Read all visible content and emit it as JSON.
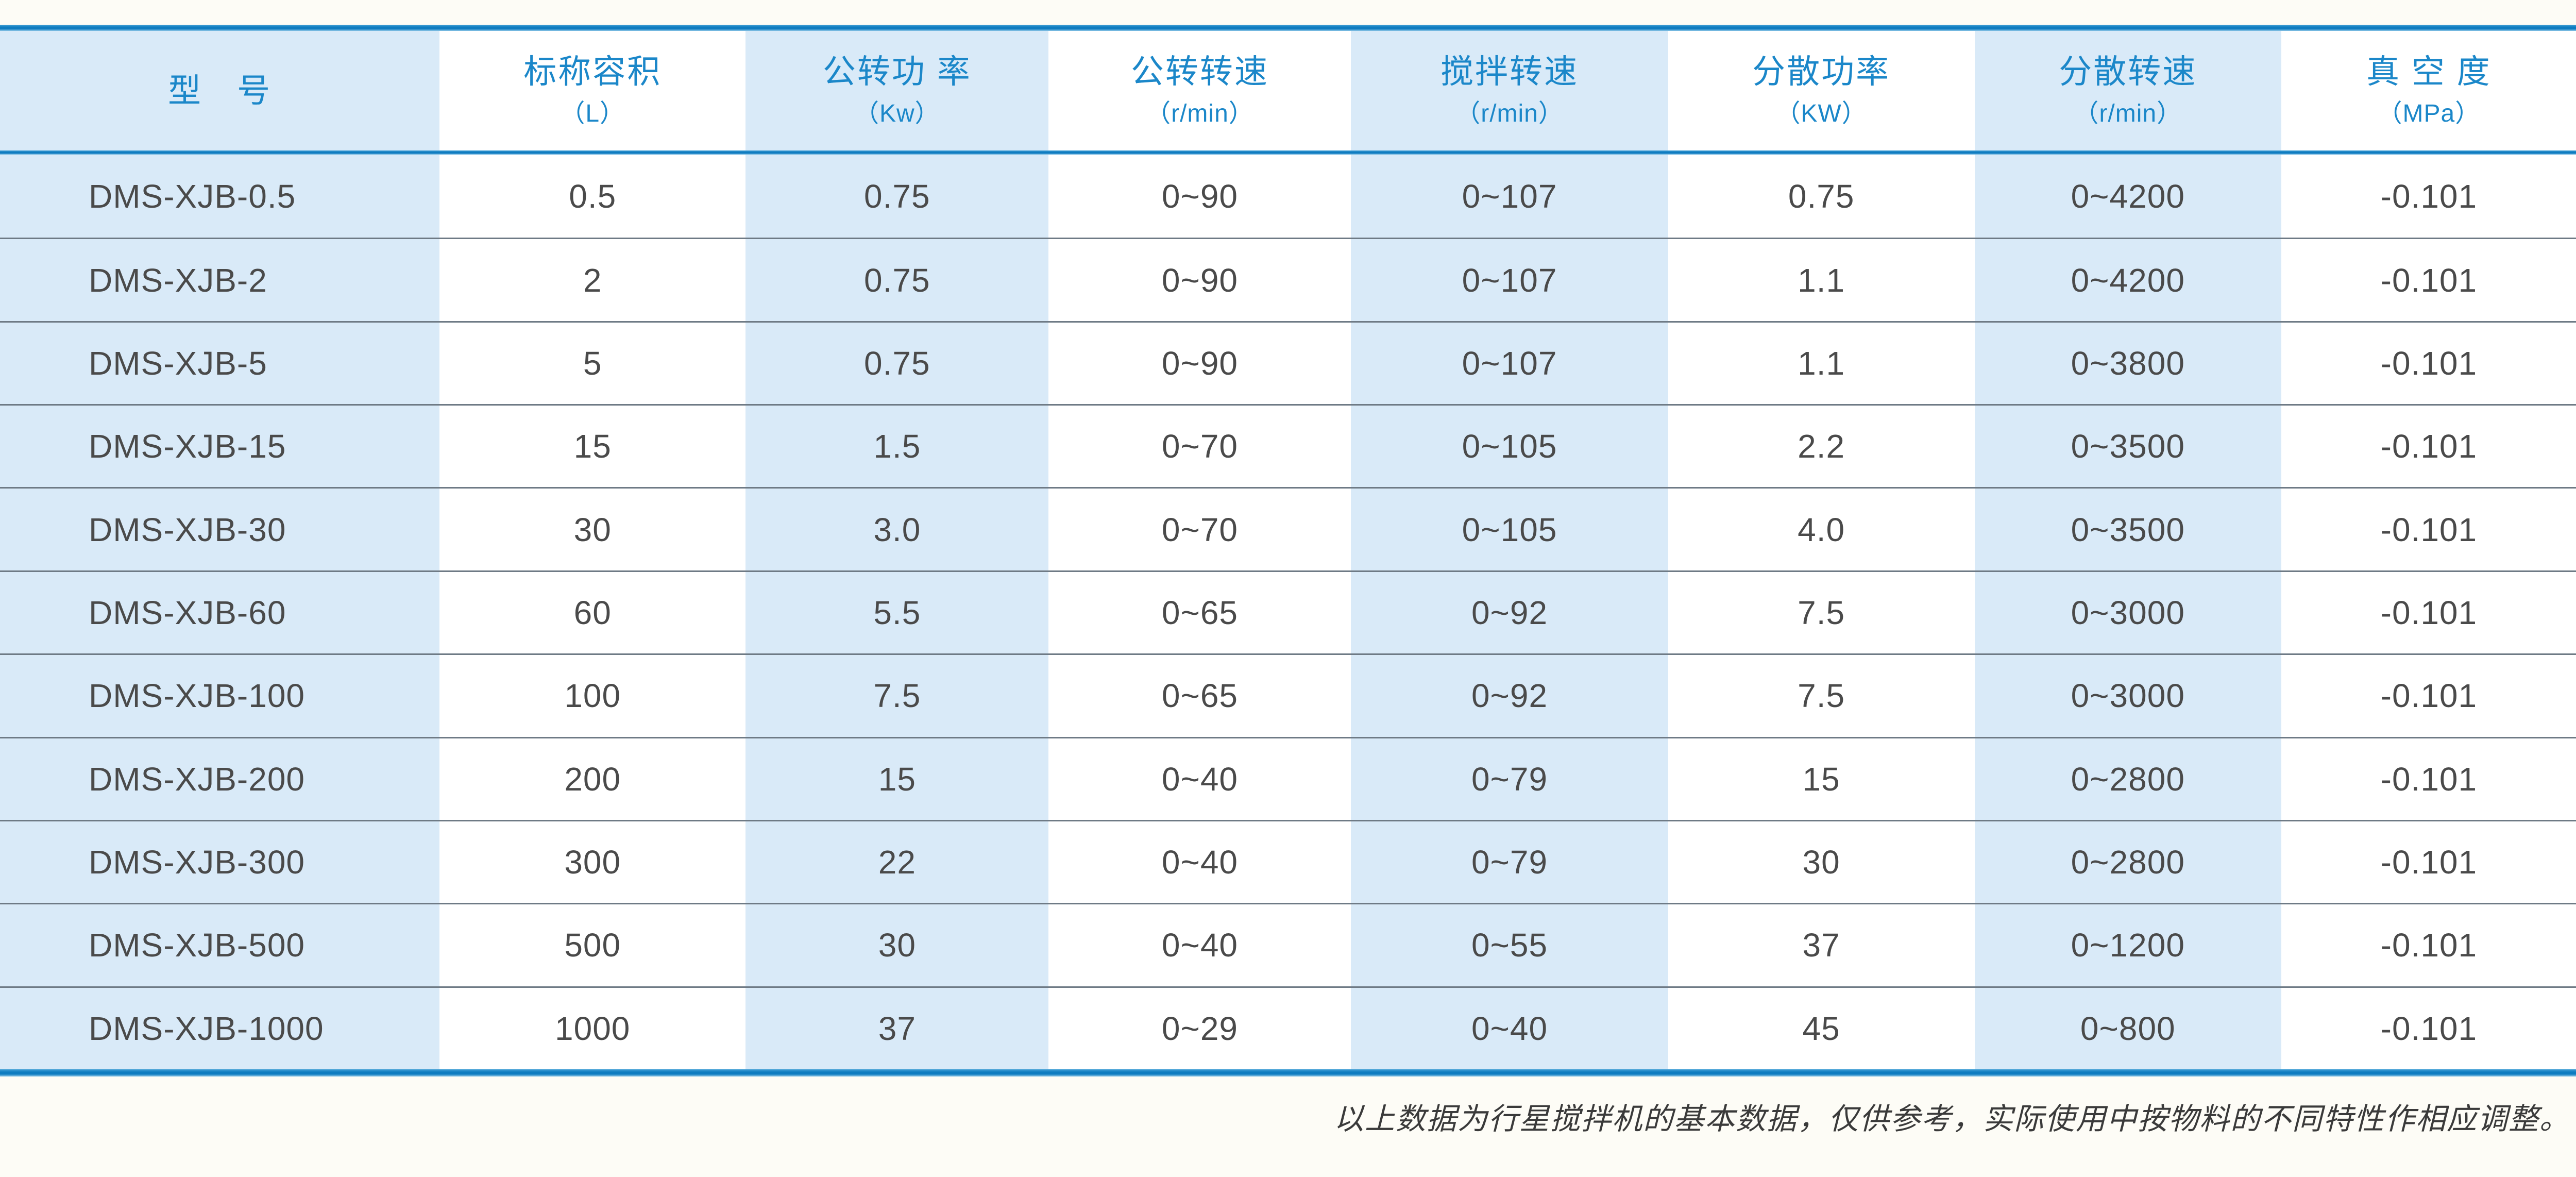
{
  "table": {
    "columns": [
      {
        "label": "型　号",
        "unit": ""
      },
      {
        "label": "标称容积",
        "unit": "（L）"
      },
      {
        "label": "公转功 率",
        "unit": "（Kw）"
      },
      {
        "label": "公转转速",
        "unit": "（r/min）"
      },
      {
        "label": "搅拌转速",
        "unit": "（r/min）"
      },
      {
        "label": "分散功率",
        "unit": "（KW）"
      },
      {
        "label": "分散转速",
        "unit": "（r/min）"
      },
      {
        "label": "真 空 度",
        "unit": "（MPa）"
      }
    ],
    "rows": [
      [
        "DMS-XJB-0.5",
        "0.5",
        "0.75",
        "0~90",
        "0~107",
        "0.75",
        "0~4200",
        "-0.101"
      ],
      [
        "DMS-XJB-2",
        "2",
        "0.75",
        "0~90",
        "0~107",
        "1.1",
        "0~4200",
        "-0.101"
      ],
      [
        "DMS-XJB-5",
        "5",
        "0.75",
        "0~90",
        "0~107",
        "1.1",
        "0~3800",
        "-0.101"
      ],
      [
        "DMS-XJB-15",
        "15",
        "1.5",
        "0~70",
        "0~105",
        "2.2",
        "0~3500",
        "-0.101"
      ],
      [
        "DMS-XJB-30",
        "30",
        "3.0",
        "0~70",
        "0~105",
        "4.0",
        "0~3500",
        "-0.101"
      ],
      [
        "DMS-XJB-60",
        "60",
        "5.5",
        "0~65",
        "0~92",
        "7.5",
        "0~3000",
        "-0.101"
      ],
      [
        "DMS-XJB-100",
        "100",
        "7.5",
        "0~65",
        "0~92",
        "7.5",
        "0~3000",
        "-0.101"
      ],
      [
        "DMS-XJB-200",
        "200",
        "15",
        "0~40",
        "0~79",
        "15",
        "0~2800",
        "-0.101"
      ],
      [
        "DMS-XJB-300",
        "300",
        "22",
        "0~40",
        "0~79",
        "30",
        "0~2800",
        "-0.101"
      ],
      [
        "DMS-XJB-500",
        "500",
        "30",
        "0~40",
        "0~55",
        "37",
        "0~1200",
        "-0.101"
      ],
      [
        "DMS-XJB-1000",
        "1000",
        "37",
        "0~29",
        "0~40",
        "45",
        "0~800",
        "-0.101"
      ]
    ]
  },
  "footnote": "以上数据为行星搅拌机的基本数据，仅供参考，实际使用中按物料的不同特性作相应调整。",
  "colors": {
    "accent_blue": "#1485c6",
    "header_text_blue": "#1b87c9",
    "stripe_light_blue": "#d9eaf8",
    "row_divider_gray": "#6e7a85",
    "body_text": "#4a4a4a",
    "footnote_text": "#3a3a3a",
    "page_background": "#fdfcf6"
  }
}
